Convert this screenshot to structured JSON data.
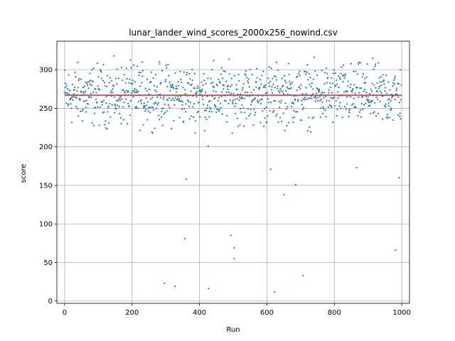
{
  "chart_data": {
    "type": "scatter",
    "title": "lunar_lander_wind_scores_2000x256_nowind.csv",
    "xlabel": "Run",
    "ylabel": "score",
    "xlim": [
      -23,
      1023
    ],
    "ylim": [
      -3,
      337
    ],
    "xticks": [
      0,
      200,
      400,
      600,
      800,
      1000
    ],
    "yticks": [
      0,
      50,
      100,
      150,
      200,
      250,
      300
    ],
    "grid": true,
    "point_color": "#1f77b4",
    "mean_line": {
      "value": 267,
      "color": "#d62728"
    },
    "dense_band": {
      "n_points": 1000,
      "min": 218,
      "max": 322,
      "center": 267
    },
    "outliers": [
      {
        "x": 296,
        "y": 23
      },
      {
        "x": 327,
        "y": 19
      },
      {
        "x": 356,
        "y": 81
      },
      {
        "x": 361,
        "y": 158
      },
      {
        "x": 426,
        "y": 201
      },
      {
        "x": 427,
        "y": 16
      },
      {
        "x": 493,
        "y": 85
      },
      {
        "x": 503,
        "y": 69
      },
      {
        "x": 503,
        "y": 55
      },
      {
        "x": 611,
        "y": 171
      },
      {
        "x": 623,
        "y": 12
      },
      {
        "x": 651,
        "y": 138
      },
      {
        "x": 685,
        "y": 151
      },
      {
        "x": 707,
        "y": 33
      },
      {
        "x": 866,
        "y": 173
      },
      {
        "x": 982,
        "y": 66
      },
      {
        "x": 992,
        "y": 160
      }
    ]
  }
}
